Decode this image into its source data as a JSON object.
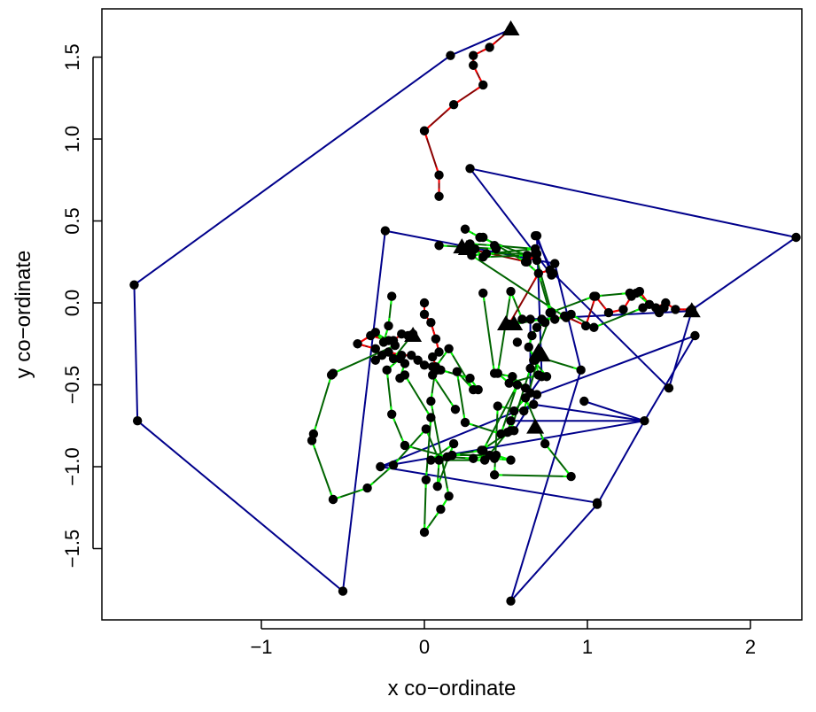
{
  "chart_data": {
    "type": "scatter",
    "title": "",
    "xlabel": "x co−ordinate",
    "ylabel": "y co−ordinate",
    "xlim": [
      -1.9,
      2.35
    ],
    "ylim": [
      -1.9,
      1.75
    ],
    "xticks": [
      -1,
      0,
      1,
      2
    ],
    "xtick_labels": [
      "−1",
      "0",
      "1",
      "2"
    ],
    "yticks": [
      -1.5,
      -1.0,
      -0.5,
      0.0,
      0.5,
      1.0,
      1.5
    ],
    "ytick_labels": [
      "−1.5",
      "−1.0",
      "−0.5",
      "0.0",
      "0.5",
      "1.0",
      "1.5"
    ],
    "grid": false,
    "colors": {
      "blue": "#00008B",
      "green": "#006400",
      "green_endpoint": "#00FF00",
      "red": "#8B0000",
      "red_endpoint": "#FF0000",
      "point": "#000000"
    },
    "series": [
      {
        "color": "red",
        "points": [
          [
            0.53,
            1.67
          ],
          [
            0.4,
            1.56
          ],
          [
            0.3,
            1.51
          ],
          [
            0.3,
            1.45
          ],
          [
            0.36,
            1.33
          ],
          [
            0.18,
            1.21
          ],
          [
            0.0,
            1.05
          ],
          [
            0.09,
            0.78
          ],
          [
            0.09,
            0.65
          ]
        ]
      },
      {
        "color": "blue",
        "points": [
          [
            0.53,
            1.67
          ],
          [
            0.16,
            1.51
          ],
          [
            -1.78,
            0.11
          ],
          [
            -1.76,
            -0.72
          ],
          [
            -0.5,
            -1.76
          ],
          [
            -0.24,
            0.44
          ],
          [
            0.69,
            0.26
          ],
          [
            0.8,
            0.24
          ],
          [
            0.96,
            -0.41
          ],
          [
            0.53,
            -1.82
          ],
          [
            1.06,
            -1.23
          ],
          [
            1.35,
            -0.72
          ],
          [
            1.66,
            -0.2
          ],
          [
            0.69,
            -0.56
          ],
          [
            0.55,
            -0.78
          ],
          [
            0.53,
            -0.72
          ],
          [
            1.35,
            -0.72
          ],
          [
            0.98,
            -0.6
          ]
        ]
      },
      {
        "color": "blue",
        "points": [
          [
            -0.27,
            -1.0
          ],
          [
            0.67,
            -0.62
          ],
          [
            1.35,
            -0.72
          ],
          [
            -0.27,
            -1.0
          ],
          [
            1.06,
            -1.22
          ]
        ]
      },
      {
        "color": "blue",
        "points": [
          [
            0.28,
            0.82
          ],
          [
            0.78,
            0.17
          ],
          [
            0.69,
            0.41
          ],
          [
            0.72,
            -0.45
          ],
          [
            0.65,
            -0.55
          ],
          [
            0.65,
            -0.1
          ],
          [
            1.63,
            -0.05
          ],
          [
            2.28,
            0.4
          ],
          [
            0.28,
            0.82
          ]
        ]
      },
      {
        "color": "blue",
        "points": [
          [
            0.68,
            0.41
          ],
          [
            0.79,
            0.18
          ],
          [
            1.5,
            -0.52
          ],
          [
            1.64,
            -0.05
          ]
        ]
      },
      {
        "color": "red",
        "points": [
          [
            0.23,
            0.34
          ],
          [
            0.63,
            0.25
          ],
          [
            0.69,
            0.3
          ]
        ]
      },
      {
        "color": "red",
        "points": [
          [
            0.52,
            -0.13
          ],
          [
            0.7,
            0.18
          ],
          [
            0.77,
            0.2
          ]
        ]
      },
      {
        "color": "red",
        "points": [
          [
            1.64,
            -0.04
          ],
          [
            1.54,
            -0.04
          ],
          [
            1.48,
            0.0
          ],
          [
            1.42,
            -0.03
          ],
          [
            1.38,
            -0.01
          ],
          [
            1.32,
            0.07
          ],
          [
            1.27,
            0.04
          ],
          [
            1.22,
            -0.04
          ],
          [
            1.13,
            -0.06
          ],
          [
            1.05,
            0.04
          ],
          [
            0.99,
            -0.14
          ],
          [
            0.86,
            -0.08
          ],
          [
            0.8,
            -0.1
          ]
        ]
      },
      {
        "color": "red",
        "points": [
          [
            -0.07,
            -0.2
          ],
          [
            -0.1,
            -0.2
          ],
          [
            -0.14,
            -0.19
          ],
          [
            -0.19,
            -0.23
          ],
          [
            -0.22,
            -0.23
          ],
          [
            -0.33,
            -0.2
          ],
          [
            -0.41,
            -0.25
          ],
          [
            -0.3,
            -0.28
          ],
          [
            -0.26,
            -0.32
          ],
          [
            -0.3,
            -0.35
          ],
          [
            -0.22,
            -0.3
          ],
          [
            -0.14,
            -0.32
          ],
          [
            -0.08,
            -0.32
          ],
          [
            -0.04,
            -0.35
          ],
          [
            0.0,
            -0.38
          ],
          [
            0.05,
            -0.39
          ],
          [
            0.08,
            -0.41
          ],
          [
            0.05,
            -0.33
          ],
          [
            0.09,
            -0.3
          ],
          [
            0.07,
            -0.22
          ],
          [
            0.04,
            -0.12
          ],
          [
            0.0,
            -0.07
          ],
          [
            0.0,
            0.0
          ]
        ]
      },
      {
        "color": "green",
        "points": [
          [
            0.25,
            0.45
          ],
          [
            0.34,
            0.4
          ],
          [
            0.63,
            0.29
          ],
          [
            0.36,
            0.28
          ],
          [
            0.31,
            0.33
          ],
          [
            0.28,
            0.36
          ],
          [
            0.43,
            0.35
          ],
          [
            0.68,
            0.33
          ],
          [
            0.29,
            0.29
          ],
          [
            0.87,
            -0.09
          ],
          [
            0.72,
            -0.1
          ],
          [
            0.55,
            -0.13
          ],
          [
            0.6,
            -0.1
          ],
          [
            0.53,
            0.07
          ],
          [
            0.45,
            -0.43
          ],
          [
            0.52,
            -0.49
          ],
          [
            0.7,
            -0.44
          ],
          [
            0.68,
            -0.35
          ],
          [
            0.64,
            -0.27
          ],
          [
            0.66,
            -0.2
          ],
          [
            0.69,
            -0.15
          ],
          [
            0.74,
            -0.12
          ]
        ]
      },
      {
        "color": "green",
        "points": [
          [
            0.09,
            0.35
          ],
          [
            0.44,
            0.33
          ]
        ]
      },
      {
        "color": "green",
        "points": [
          [
            -0.2,
            0.04
          ],
          [
            -0.22,
            -0.14
          ],
          [
            -0.25,
            -0.24
          ],
          [
            -0.3,
            -0.18
          ],
          [
            -0.18,
            -0.26
          ],
          [
            -0.56,
            -0.43
          ],
          [
            -0.57,
            -0.44
          ],
          [
            -0.68,
            -0.8
          ],
          [
            -0.69,
            -0.84
          ],
          [
            -0.56,
            -1.2
          ],
          [
            -0.35,
            -1.13
          ],
          [
            -0.19,
            -0.99
          ],
          [
            0.01,
            -0.77
          ],
          [
            0.09,
            -0.96
          ],
          [
            0.08,
            -1.12
          ],
          [
            0.18,
            -0.86
          ],
          [
            0.04,
            -0.96
          ],
          [
            0.37,
            -0.96
          ],
          [
            0.51,
            -0.79
          ],
          [
            0.55,
            -0.66
          ],
          [
            0.62,
            -0.58
          ],
          [
            0.74,
            -0.86
          ],
          [
            0.9,
            -1.06
          ],
          [
            0.43,
            -1.05
          ],
          [
            0.45,
            -0.63
          ],
          [
            0.61,
            -0.66
          ],
          [
            0.7,
            -0.33
          ],
          [
            0.96,
            -0.41
          ]
        ]
      },
      {
        "color": "green",
        "points": [
          [
            -0.12,
            -0.37
          ],
          [
            -0.15,
            -0.46
          ],
          [
            -0.12,
            -0.44
          ],
          [
            0.04,
            -0.7
          ],
          [
            0.01,
            -1.08
          ],
          [
            0.0,
            -1.4
          ],
          [
            0.1,
            -1.26
          ],
          [
            0.15,
            -1.18
          ],
          [
            0.04,
            -0.6
          ],
          [
            0.07,
            -0.39
          ],
          [
            0.15,
            -0.28
          ],
          [
            0.3,
            -0.53
          ],
          [
            0.2,
            -0.42
          ],
          [
            0.25,
            -0.73
          ],
          [
            0.47,
            -0.8
          ],
          [
            0.57,
            -0.5
          ],
          [
            0.36,
            -0.9
          ],
          [
            0.43,
            -0.95
          ],
          [
            0.53,
            -0.96
          ],
          [
            0.44,
            -0.93
          ],
          [
            0.17,
            -0.93
          ],
          [
            0.35,
            -0.9
          ],
          [
            0.53,
            -0.78
          ],
          [
            0.65,
            -0.4
          ]
        ]
      },
      {
        "color": "green",
        "points": [
          [
            -0.07,
            -0.19
          ],
          [
            -0.19,
            -0.34
          ],
          [
            -0.15,
            -0.34
          ],
          [
            -0.23,
            -0.41
          ],
          [
            -0.2,
            -0.68
          ],
          [
            -0.12,
            -0.87
          ],
          [
            0.14,
            -0.94
          ],
          [
            0.3,
            -0.95
          ],
          [
            0.4,
            -0.93
          ]
        ]
      },
      {
        "color": "green",
        "points": [
          [
            0.19,
            -0.65
          ],
          [
            0.05,
            -0.44
          ],
          [
            0.1,
            -0.41
          ],
          [
            0.28,
            -0.46
          ],
          [
            0.33,
            -0.53
          ]
        ]
      },
      {
        "color": "green",
        "points": [
          [
            0.36,
            0.06
          ],
          [
            0.43,
            -0.43
          ],
          [
            0.54,
            -0.45
          ],
          [
            0.62,
            -0.52
          ]
        ]
      },
      {
        "color": "green",
        "points": [
          [
            0.38,
            0.3
          ],
          [
            0.68,
            0.3
          ],
          [
            0.78,
            -0.06
          ],
          [
            0.67,
            -0.35
          ],
          [
            0.75,
            -0.45
          ]
        ]
      },
      {
        "color": "green",
        "points": [
          [
            0.9,
            -0.07
          ],
          [
            1.04,
            -0.15
          ],
          [
            1.34,
            -0.03
          ],
          [
            1.47,
            -0.03
          ],
          [
            1.44,
            -0.06
          ]
        ]
      },
      {
        "color": "green",
        "points": [
          [
            0.36,
            0.4
          ],
          [
            0.62,
            0.25
          ],
          [
            0.7,
            0.18
          ],
          [
            0.77,
            -0.06
          ],
          [
            1.04,
            0.04
          ],
          [
            1.26,
            0.06
          ],
          [
            1.3,
            0.06
          ],
          [
            1.38,
            -0.01
          ]
        ]
      }
    ],
    "triangles": [
      [
        0.53,
        1.67
      ],
      [
        0.23,
        0.34
      ],
      [
        0.26,
        0.33
      ],
      [
        -0.07,
        -0.2
      ],
      [
        0.5,
        -0.13
      ],
      [
        0.55,
        -0.13
      ],
      [
        0.7,
        -0.3
      ],
      [
        0.72,
        -0.32
      ],
      [
        0.68,
        -0.76
      ],
      [
        1.64,
        -0.05
      ]
    ],
    "extra_points": [
      [
        0.09,
        0.65
      ],
      [
        0.28,
        0.82
      ],
      [
        0.69,
        0.41
      ],
      [
        1.35,
        -0.72
      ],
      [
        1.5,
        -0.52
      ],
      [
        0.57,
        -0.24
      ]
    ]
  }
}
